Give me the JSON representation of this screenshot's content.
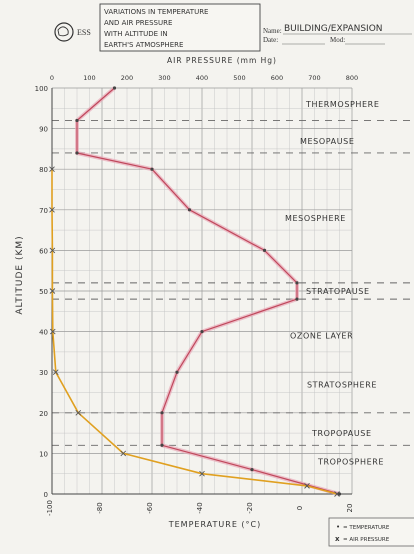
{
  "header": {
    "logo_text": "ESS",
    "title_lines": [
      "VARIATIONS IN TEMPERATURE",
      "AND AIR PRESSURE",
      "WITH ALTITUDE IN",
      "EARTH'S ATMOSPHERE"
    ],
    "name_label": "Name:",
    "name_value": "BUILDING/EXPANSION",
    "date_label": "Date:",
    "mod_label": "Mod:"
  },
  "legend": {
    "items": [
      {
        "marker": "•",
        "label": "= TEMPERATURE",
        "color": "#c0485c"
      },
      {
        "marker": "x",
        "label": "= AIR PRESSURE",
        "color": "#e0a020"
      }
    ]
  },
  "chart_data": {
    "type": "line",
    "ylabel": "ALTITUDE (KM)",
    "x_top_label": "AIR PRESSURE (mm Hg)",
    "x_bottom_label": "TEMPERATURE (°C)",
    "y_ticks": [
      0,
      10,
      20,
      30,
      40,
      50,
      60,
      70,
      80,
      90,
      100
    ],
    "top_ticks": [
      0,
      100,
      200,
      300,
      400,
      500,
      600,
      700,
      800
    ],
    "bottom_ticks": [
      -100,
      -80,
      -60,
      -40,
      -20,
      0,
      20
    ],
    "ylim": [
      0,
      100
    ],
    "top_xlim": [
      0,
      800
    ],
    "bottom_xlim": [
      -100,
      20
    ],
    "grid": true,
    "series": [
      {
        "name": "TEMPERATURE",
        "axis": "bottom",
        "color": "#c0485c",
        "points": [
          [
            15,
            0
          ],
          [
            -20,
            6
          ],
          [
            -56,
            12
          ],
          [
            -56,
            20
          ],
          [
            -50,
            30
          ],
          [
            -40,
            40
          ],
          [
            -2,
            48
          ],
          [
            -2,
            52
          ],
          [
            -15,
            60
          ],
          [
            -45,
            70
          ],
          [
            -60,
            80
          ],
          [
            -90,
            84
          ],
          [
            -90,
            92
          ],
          [
            -75,
            100
          ]
        ]
      },
      {
        "name": "AIR PRESSURE",
        "axis": "top",
        "color": "#e0a020",
        "points": [
          [
            760,
            0
          ],
          [
            680,
            2
          ],
          [
            400,
            5
          ],
          [
            190,
            10
          ],
          [
            70,
            20
          ],
          [
            10,
            30
          ],
          [
            2,
            40
          ],
          [
            1,
            50
          ],
          [
            1,
            60
          ],
          [
            0,
            70
          ],
          [
            0,
            80
          ]
        ]
      }
    ],
    "layers": [
      {
        "label": "THERMOSPHERE",
        "altitude": 96
      },
      {
        "label": "MESOPAUSE",
        "altitude": 87
      },
      {
        "label": "MESOSPHERE",
        "altitude": 68
      },
      {
        "label": "STRATOPAUSE",
        "altitude": 50
      },
      {
        "label": "OZONE LAYER",
        "altitude": 39
      },
      {
        "label": "STRATOSPHERE",
        "altitude": 27
      },
      {
        "label": "TROPOPAUSE",
        "altitude": 15
      },
      {
        "label": "TROPOSPHERE",
        "altitude": 8
      }
    ],
    "boundary_altitudes": [
      92,
      84,
      52,
      48,
      20,
      12
    ]
  }
}
